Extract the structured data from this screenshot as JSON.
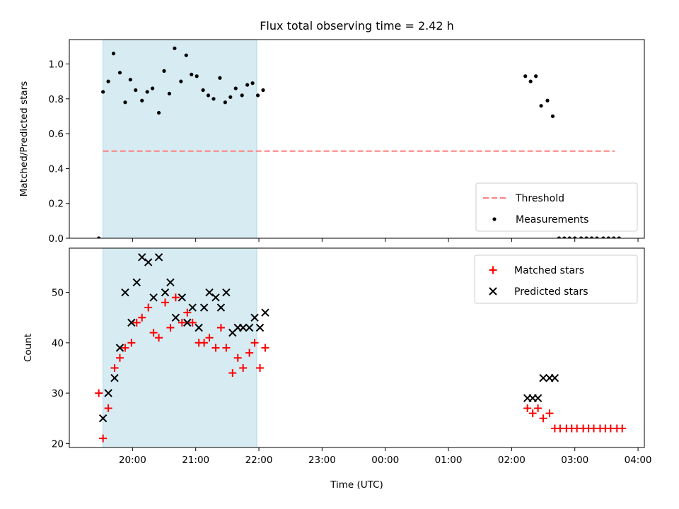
{
  "chart_data": [
    {
      "type": "scatter",
      "title": "Flux total observing time = 2.42 h",
      "xlabel": "",
      "ylabel": "Matched/Predicted stars",
      "ylim": [
        0,
        1.14
      ],
      "yticks": [
        "0.0",
        "0.2",
        "0.4",
        "0.6",
        "0.8",
        "1.0"
      ],
      "xlim_hours": [
        19.0,
        28.1
      ],
      "xticks": [
        "20:00",
        "21:00",
        "22:00",
        "23:00",
        "00:00",
        "01:00",
        "02:00",
        "03:00",
        "04:00"
      ],
      "xticklabels_visible": false,
      "shaded_span": {
        "from": "19:32",
        "to": "21:58",
        "color": "#add8e6"
      },
      "legend": {
        "placement": "lower right",
        "entries": [
          "Threshold",
          "Measurements"
        ]
      },
      "threshold": {
        "name": "Threshold",
        "value": 0.5,
        "from": "19:32",
        "to": "03:38",
        "color": "#ff7f7f",
        "style": "dashed"
      },
      "series": [
        {
          "name": "Measurements",
          "color": "#000000",
          "marker": "dot",
          "points": [
            [
              "19:28",
              0.0
            ],
            [
              "19:32",
              0.84
            ],
            [
              "19:37",
              0.9
            ],
            [
              "19:42",
              1.06
            ],
            [
              "19:48",
              0.95
            ],
            [
              "19:53",
              0.78
            ],
            [
              "19:58",
              0.91
            ],
            [
              "20:03",
              0.85
            ],
            [
              "20:09",
              0.79
            ],
            [
              "20:14",
              0.84
            ],
            [
              "20:19",
              0.86
            ],
            [
              "20:25",
              0.72
            ],
            [
              "20:30",
              0.96
            ],
            [
              "20:35",
              0.83
            ],
            [
              "20:40",
              1.09
            ],
            [
              "20:46",
              0.9
            ],
            [
              "20:51",
              1.05
            ],
            [
              "20:56",
              0.94
            ],
            [
              "21:01",
              0.93
            ],
            [
              "21:07",
              0.85
            ],
            [
              "21:12",
              0.82
            ],
            [
              "21:17",
              0.8
            ],
            [
              "21:23",
              0.92
            ],
            [
              "21:28",
              0.78
            ],
            [
              "21:33",
              0.81
            ],
            [
              "21:38",
              0.86
            ],
            [
              "21:44",
              0.82
            ],
            [
              "21:49",
              0.88
            ],
            [
              "21:54",
              0.89
            ],
            [
              "21:59",
              0.82
            ],
            [
              "22:04",
              0.85
            ],
            [
              "02:13",
              0.93
            ],
            [
              "02:18",
              0.9
            ],
            [
              "02:23",
              0.93
            ],
            [
              "02:28",
              0.76
            ],
            [
              "02:34",
              0.79
            ],
            [
              "02:39",
              0.7
            ],
            [
              "02:45",
              0.0
            ],
            [
              "02:50",
              0.0
            ],
            [
              "02:55",
              0.0
            ],
            [
              "03:00",
              0.0
            ],
            [
              "03:06",
              0.0
            ],
            [
              "03:11",
              0.0
            ],
            [
              "03:16",
              0.0
            ],
            [
              "03:21",
              0.0
            ],
            [
              "03:27",
              0.0
            ],
            [
              "03:32",
              0.0
            ],
            [
              "03:37",
              0.0
            ],
            [
              "03:42",
              0.0
            ]
          ]
        }
      ]
    },
    {
      "type": "scatter",
      "title": "",
      "xlabel": "Time (UTC)",
      "ylabel": "Count",
      "ylim": [
        19.2,
        58.8
      ],
      "yticks": [
        "20",
        "30",
        "40",
        "50"
      ],
      "xlim_hours": [
        19.0,
        28.1
      ],
      "xticks": [
        "20:00",
        "21:00",
        "22:00",
        "23:00",
        "00:00",
        "01:00",
        "02:00",
        "03:00",
        "04:00"
      ],
      "shaded_span": {
        "from": "19:32",
        "to": "21:58",
        "color": "#add8e6"
      },
      "legend": {
        "placement": "upper right",
        "entries": [
          "Matched stars",
          "Predicted stars"
        ]
      },
      "series": [
        {
          "name": "Matched stars",
          "color": "#ff0000",
          "marker": "plus",
          "points": [
            [
              "19:28",
              30
            ],
            [
              "19:32",
              21
            ],
            [
              "19:37",
              27
            ],
            [
              "19:43",
              35
            ],
            [
              "19:48",
              37
            ],
            [
              "19:53",
              39
            ],
            [
              "19:59",
              40
            ],
            [
              "20:04",
              44
            ],
            [
              "20:09",
              45
            ],
            [
              "20:15",
              47
            ],
            [
              "20:20",
              42
            ],
            [
              "20:25",
              41
            ],
            [
              "20:31",
              48
            ],
            [
              "20:36",
              43
            ],
            [
              "20:41",
              49
            ],
            [
              "20:47",
              44
            ],
            [
              "20:52",
              46
            ],
            [
              "20:57",
              44
            ],
            [
              "21:03",
              40
            ],
            [
              "21:08",
              40
            ],
            [
              "21:13",
              41
            ],
            [
              "21:19",
              39
            ],
            [
              "21:24",
              43
            ],
            [
              "21:29",
              39
            ],
            [
              "21:35",
              34
            ],
            [
              "21:40",
              37
            ],
            [
              "21:45",
              35
            ],
            [
              "21:51",
              38
            ],
            [
              "21:56",
              40
            ],
            [
              "22:01",
              35
            ],
            [
              "22:06",
              39
            ],
            [
              "02:15",
              27
            ],
            [
              "02:20",
              26
            ],
            [
              "02:25",
              27
            ],
            [
              "02:30",
              25
            ],
            [
              "02:36",
              26
            ],
            [
              "02:41",
              23
            ],
            [
              "02:46",
              23
            ],
            [
              "02:52",
              23
            ],
            [
              "02:57",
              23
            ],
            [
              "03:02",
              23
            ],
            [
              "03:08",
              23
            ],
            [
              "03:13",
              23
            ],
            [
              "03:18",
              23
            ],
            [
              "03:24",
              23
            ],
            [
              "03:29",
              23
            ],
            [
              "03:34",
              23
            ],
            [
              "03:40",
              23
            ],
            [
              "03:45",
              23
            ]
          ]
        },
        {
          "name": "Predicted stars",
          "color": "#000000",
          "marker": "x",
          "points": [
            [
              "19:32",
              25
            ],
            [
              "19:37",
              30
            ],
            [
              "19:43",
              33
            ],
            [
              "19:48",
              39
            ],
            [
              "19:53",
              50
            ],
            [
              "19:59",
              44
            ],
            [
              "20:04",
              52
            ],
            [
              "20:09",
              57
            ],
            [
              "20:15",
              56
            ],
            [
              "20:20",
              49
            ],
            [
              "20:25",
              57
            ],
            [
              "20:31",
              50
            ],
            [
              "20:36",
              52
            ],
            [
              "20:41",
              45
            ],
            [
              "20:47",
              49
            ],
            [
              "20:52",
              44
            ],
            [
              "20:57",
              47
            ],
            [
              "21:03",
              43
            ],
            [
              "21:08",
              47
            ],
            [
              "21:13",
              50
            ],
            [
              "21:19",
              49
            ],
            [
              "21:24",
              47
            ],
            [
              "21:29",
              50
            ],
            [
              "21:35",
              42
            ],
            [
              "21:40",
              43
            ],
            [
              "21:45",
              43
            ],
            [
              "21:51",
              43
            ],
            [
              "21:56",
              45
            ],
            [
              "22:01",
              43
            ],
            [
              "22:06",
              46
            ],
            [
              "02:15",
              29
            ],
            [
              "02:20",
              29
            ],
            [
              "02:25",
              29
            ],
            [
              "02:30",
              33
            ],
            [
              "02:36",
              33
            ],
            [
              "02:41",
              33
            ]
          ]
        }
      ]
    }
  ]
}
